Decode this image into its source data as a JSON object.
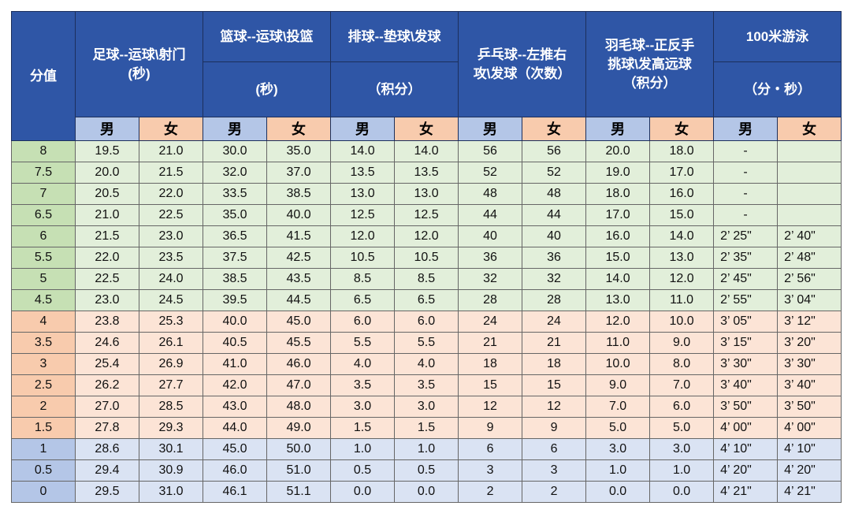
{
  "header": {
    "score": "分值",
    "groups": [
      {
        "lines": [
          "足球--运球\\射门",
          "(秒)"
        ]
      },
      {
        "title": "篮球--运球\\投篮",
        "unit": "(秒)"
      },
      {
        "title": "排球--垫球\\发球",
        "unit": "（积分）"
      },
      {
        "lines": [
          "乒乓球--左推右",
          "攻\\发球（次数）"
        ]
      },
      {
        "lines": [
          "羽毛球--正反手",
          "挑球\\发高远球",
          "（积分）"
        ]
      },
      {
        "title": "100米游泳",
        "unit": "（分・秒）"
      }
    ],
    "male": "男",
    "female": "女"
  },
  "table": {
    "rows": [
      [
        "8",
        "19.5",
        "21.0",
        "30.0",
        "35.0",
        "14.0",
        "14.0",
        "56",
        "56",
        "20.0",
        "18.0",
        "-",
        null
      ],
      [
        "7.5",
        "20.0",
        "21.5",
        "32.0",
        "37.0",
        "13.5",
        "13.5",
        "52",
        "52",
        "19.0",
        "17.0",
        "-",
        null
      ],
      [
        "7",
        "20.5",
        "22.0",
        "33.5",
        "38.5",
        "13.0",
        "13.0",
        "48",
        "48",
        "18.0",
        "16.0",
        "-",
        null
      ],
      [
        "6.5",
        "21.0",
        "22.5",
        "35.0",
        "40.0",
        "12.5",
        "12.5",
        "44",
        "44",
        "17.0",
        "15.0",
        "-",
        null
      ],
      [
        "6",
        "21.5",
        "23.0",
        "36.5",
        "41.5",
        "12.0",
        "12.0",
        "40",
        "40",
        "16.0",
        "14.0",
        "2’ 25\"",
        "2’ 40\""
      ],
      [
        "5.5",
        "22.0",
        "23.5",
        "37.5",
        "42.5",
        "10.5",
        "10.5",
        "36",
        "36",
        "15.0",
        "13.0",
        "2’ 35\"",
        "2’ 48\""
      ],
      [
        "5",
        "22.5",
        "24.0",
        "38.5",
        "43.5",
        "8.5",
        "8.5",
        "32",
        "32",
        "14.0",
        "12.0",
        "2’ 45\"",
        "2’ 56\""
      ],
      [
        "4.5",
        "23.0",
        "24.5",
        "39.5",
        "44.5",
        "6.5",
        "6.5",
        "28",
        "28",
        "13.0",
        "11.0",
        "2’ 55\"",
        "3’ 04\""
      ],
      [
        "4",
        "23.8",
        "25.3",
        "40.0",
        "45.0",
        "6.0",
        "6.0",
        "24",
        "24",
        "12.0",
        "10.0",
        "3’ 05\"",
        "3’ 12\""
      ],
      [
        "3.5",
        "24.6",
        "26.1",
        "40.5",
        "45.5",
        "5.5",
        "5.5",
        "21",
        "21",
        "11.0",
        "9.0",
        "3’ 15\"",
        "3’ 20\""
      ],
      [
        "3",
        "25.4",
        "26.9",
        "41.0",
        "46.0",
        "4.0",
        "4.0",
        "18",
        "18",
        "10.0",
        "8.0",
        "3’ 30\"",
        "3’ 30\""
      ],
      [
        "2.5",
        "26.2",
        "27.7",
        "42.0",
        "47.0",
        "3.5",
        "3.5",
        "15",
        "15",
        "9.0",
        "7.0",
        "3’ 40\"",
        "3’ 40\""
      ],
      [
        "2",
        "27.0",
        "28.5",
        "43.0",
        "48.0",
        "3.0",
        "3.0",
        "12",
        "12",
        "7.0",
        "6.0",
        "3’ 50\"",
        "3’ 50\""
      ],
      [
        "1.5",
        "27.8",
        "29.3",
        "44.0",
        "49.0",
        "1.5",
        "1.5",
        "9",
        "9",
        "5.0",
        "5.0",
        "4’ 00\"",
        "4’ 00\""
      ],
      [
        "1",
        "28.6",
        "30.1",
        "45.0",
        "50.0",
        "1.0",
        "1.0",
        "6",
        "6",
        "3.0",
        "3.0",
        "4’ 10\"",
        "4’ 10\""
      ],
      [
        "0.5",
        "29.4",
        "30.9",
        "46.0",
        "51.0",
        "0.5",
        "0.5",
        "3",
        "3",
        "1.0",
        "1.0",
        "4’ 20\"",
        "4’ 20\""
      ],
      [
        "0",
        "29.5",
        "31.0",
        "46.1",
        "51.1",
        "0.0",
        "0.0",
        "2",
        "2",
        "0.0",
        "0.0",
        "4’ 21\"",
        "4’ 21\""
      ]
    ]
  }
}
